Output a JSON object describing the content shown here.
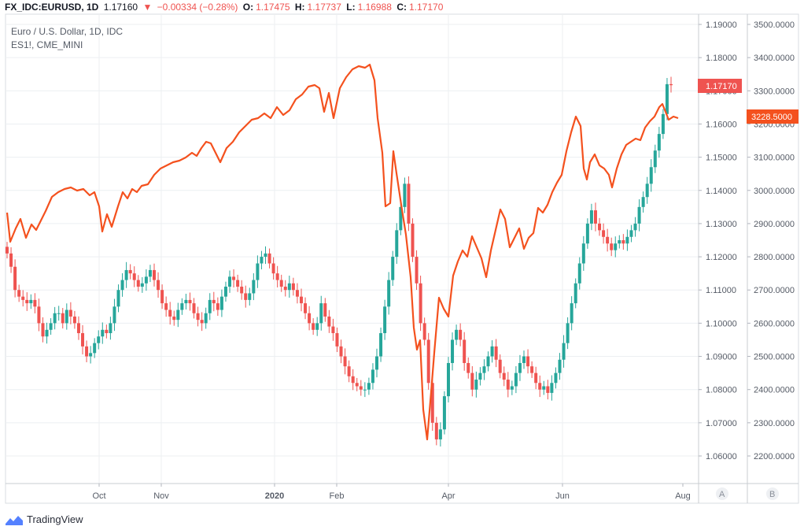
{
  "header": {
    "symbol": "FX_IDC:EURUSD, 1D",
    "last": "1.17160",
    "arrow": "▼",
    "change": "−0.00334 (−0.28%)",
    "o_label": "O:",
    "o_value": "1.17475",
    "h_label": "H:",
    "h_value": "1.17737",
    "l_label": "L:",
    "l_value": "1.16988",
    "c_label": "C:",
    "c_value": "1.17170"
  },
  "legend": {
    "main_series": "Euro / U.S. Dollar, 1D, IDC",
    "overlay_series": "ES1!, CME_MINI"
  },
  "brand": {
    "name": "TradingView",
    "logo_icon": "tradingview-logo-icon"
  },
  "colors": {
    "up": "#26a69a",
    "down": "#ef5350",
    "overlay": "#f4511e",
    "grid": "#e6e9ee"
  },
  "chart_data": {
    "type": "line",
    "title": "Euro / U.S. Dollar, 1D, IDC",
    "x_tick_labels": [
      "Oct",
      "Nov",
      "2020",
      "Feb",
      "Apr",
      "Jun",
      "Aug"
    ],
    "scale_a": {
      "name": "A",
      "ticks": [
        "1.19000",
        "1.18000",
        "1.17000",
        "1.16000",
        "1.15000",
        "1.14000",
        "1.13000",
        "1.12000",
        "1.11000",
        "1.10000",
        "1.09000",
        "1.08000",
        "1.07000",
        "1.06000"
      ],
      "range": [
        1.055,
        1.195
      ],
      "last_value_label": "1.17170"
    },
    "scale_b": {
      "name": "B",
      "ticks": [
        "3500.0000",
        "3400.0000",
        "3300.0000",
        "3200.0000",
        "3100.0000",
        "3000.0000",
        "2900.0000",
        "2800.0000",
        "2700.0000",
        "2600.0000",
        "2500.0000",
        "2400.0000",
        "2300.0000",
        "2200.0000"
      ],
      "range": [
        2140,
        3520
      ],
      "last_value_label": "3228.5000"
    },
    "eurusd_close_path": [
      1.121,
      1.117,
      1.11,
      1.108,
      1.107,
      1.106,
      1.107,
      1.105,
      1.1,
      1.096,
      1.098,
      1.1,
      1.103,
      1.103,
      1.1,
      1.104,
      1.102,
      1.1,
      1.097,
      1.093,
      1.09,
      1.091,
      1.094,
      1.096,
      1.098,
      1.097,
      1.1,
      1.105,
      1.11,
      1.113,
      1.116,
      1.115,
      1.113,
      1.111,
      1.112,
      1.114,
      1.116,
      1.113,
      1.11,
      1.106,
      1.104,
      1.102,
      1.101,
      1.104,
      1.106,
      1.107,
      1.106,
      1.103,
      1.101,
      1.1,
      1.103,
      1.107,
      1.106,
      1.104,
      1.108,
      1.111,
      1.114,
      1.113,
      1.111,
      1.109,
      1.107,
      1.109,
      1.113,
      1.118,
      1.12,
      1.121,
      1.118,
      1.115,
      1.113,
      1.111,
      1.11,
      1.112,
      1.11,
      1.108,
      1.106,
      1.103,
      1.1,
      1.098,
      1.1,
      1.106,
      1.102,
      1.099,
      1.097,
      1.093,
      1.09,
      1.087,
      1.084,
      1.082,
      1.081,
      1.08,
      1.08,
      1.082,
      1.086,
      1.09,
      1.097,
      1.105,
      1.113,
      1.12,
      1.128,
      1.135,
      1.142,
      1.13,
      1.12,
      1.112,
      1.1,
      1.095,
      1.082,
      1.07,
      1.065,
      1.068,
      1.078,
      1.088,
      1.095,
      1.098,
      1.095,
      1.088,
      1.085,
      1.08,
      1.083,
      1.085,
      1.087,
      1.09,
      1.093,
      1.089,
      1.085,
      1.083,
      1.08,
      1.081,
      1.085,
      1.088,
      1.09,
      1.087,
      1.085,
      1.082,
      1.08,
      1.081,
      1.079,
      1.082,
      1.085,
      1.089,
      1.094,
      1.1,
      1.106,
      1.112,
      1.118,
      1.124,
      1.13,
      1.134,
      1.13,
      1.128,
      1.126,
      1.124,
      1.122,
      1.124,
      1.125,
      1.124,
      1.126,
      1.128,
      1.13,
      1.135,
      1.138,
      1.142,
      1.147,
      1.152,
      1.157,
      1.163,
      1.172,
      1.1717
    ]
  }
}
